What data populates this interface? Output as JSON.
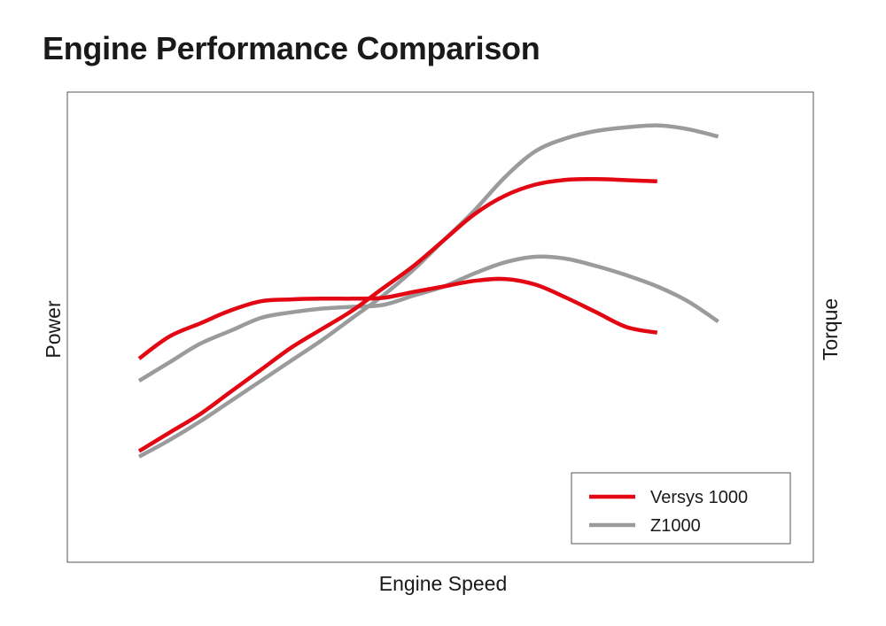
{
  "chart_data": {
    "type": "line",
    "title": "Engine Performance Comparison",
    "xlabel": "Engine Speed",
    "ylabel": "Power",
    "ylabel_right": "Torque",
    "xlim": [
      0,
      100
    ],
    "ylim": [
      0,
      100
    ],
    "grid": false,
    "legend_position": "bottom-right",
    "series": [
      {
        "name": "Versys 1000",
        "metric": "Power",
        "color": "#e30613",
        "x": [
          0,
          5,
          10,
          15,
          20,
          25,
          30,
          35,
          40,
          45,
          50,
          55,
          60,
          65,
          70,
          75,
          80,
          85
        ],
        "y": [
          14,
          19,
          24,
          30,
          36,
          42,
          47,
          52,
          58,
          64,
          71,
          78,
          83,
          86,
          87.3,
          87.5,
          87.2,
          86.9
        ]
      },
      {
        "name": "Versys 1000",
        "metric": "Torque",
        "color": "#e30613",
        "x": [
          0,
          5,
          10,
          15,
          20,
          25,
          30,
          35,
          40,
          45,
          50,
          55,
          60,
          65,
          70,
          75,
          80,
          85
        ],
        "y": [
          39,
          45,
          48.5,
          52,
          54.5,
          55,
          55.2,
          55.2,
          55.4,
          57,
          58.5,
          60,
          60.5,
          59,
          55.5,
          51.5,
          47.5,
          46
        ]
      },
      {
        "name": "Z1000",
        "metric": "Power",
        "color": "#9a9b9c",
        "x": [
          0,
          5,
          10,
          15,
          20,
          25,
          30,
          35,
          40,
          45,
          50,
          55,
          60,
          65,
          70,
          75,
          80,
          85,
          90,
          95
        ],
        "y": [
          12.5,
          17,
          22,
          27.5,
          33,
          38.5,
          44,
          50,
          56,
          63,
          71,
          79,
          88,
          95,
          98.5,
          100.5,
          101.5,
          102,
          101,
          99
        ]
      },
      {
        "name": "Z1000",
        "metric": "Torque",
        "color": "#9a9b9c",
        "x": [
          0,
          5,
          10,
          15,
          20,
          25,
          30,
          35,
          40,
          45,
          50,
          55,
          60,
          65,
          70,
          75,
          80,
          85,
          90,
          95
        ],
        "y": [
          33,
          38,
          43,
          46.5,
          50,
          51.5,
          52.5,
          53,
          53.5,
          56,
          58.5,
          62,
          65,
          66.5,
          66,
          64,
          61.5,
          58.5,
          54.5,
          49
        ]
      }
    ]
  }
}
